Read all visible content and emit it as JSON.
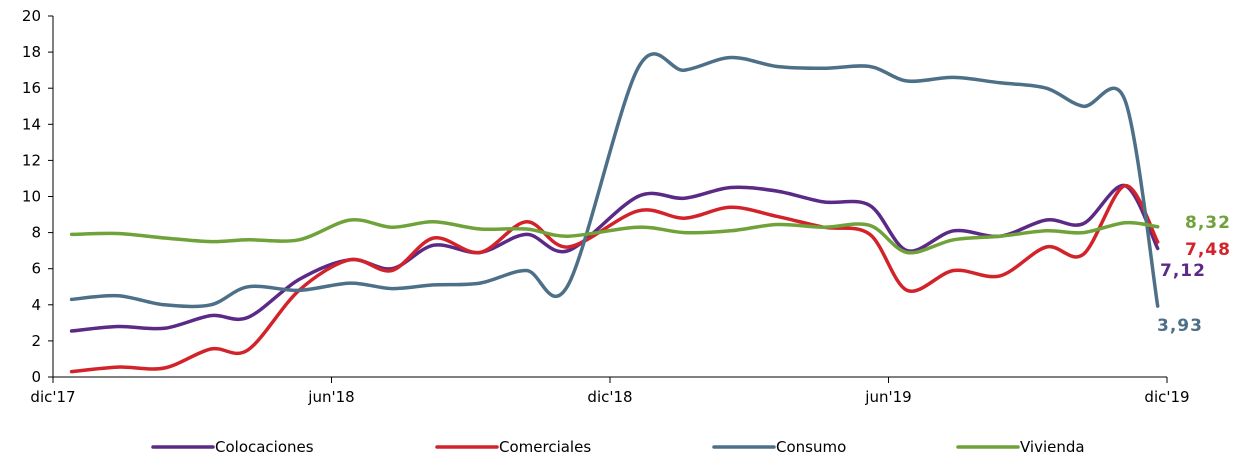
{
  "chart_data": {
    "type": "line",
    "ylim": [
      0,
      20
    ],
    "yticks": [
      "0",
      "2",
      "4",
      "6",
      "8",
      "10",
      "12",
      "14",
      "16",
      "18",
      "20"
    ],
    "xlim": [
      0,
      24
    ],
    "xticks": [
      {
        "x": 0,
        "label": "dic'17"
      },
      {
        "x": 6,
        "label": "jun'18"
      },
      {
        "x": 12,
        "label": "dic'18"
      },
      {
        "x": 18,
        "label": "jun'19"
      },
      {
        "x": 24,
        "label": "dic'19"
      }
    ],
    "series": [
      {
        "name": "Colocaciones",
        "color": "#5b2a86",
        "end_label": "7,12",
        "values": [
          [
            0.4,
            2.55
          ],
          [
            1.4,
            2.8
          ],
          [
            2.4,
            2.7
          ],
          [
            3.4,
            3.4
          ],
          [
            4.2,
            3.3
          ],
          [
            5.3,
            5.4
          ],
          [
            6.4,
            6.5
          ],
          [
            7.3,
            6.0
          ],
          [
            8.2,
            7.3
          ],
          [
            9.2,
            6.9
          ],
          [
            10.2,
            7.9
          ],
          [
            11.1,
            7.0
          ],
          [
            12.6,
            10.0
          ],
          [
            13.6,
            9.9
          ],
          [
            14.6,
            10.5
          ],
          [
            15.6,
            10.3
          ],
          [
            16.6,
            9.7
          ],
          [
            17.6,
            9.5
          ],
          [
            18.4,
            7.0
          ],
          [
            19.4,
            8.1
          ],
          [
            20.4,
            7.8
          ],
          [
            21.4,
            8.7
          ],
          [
            22.2,
            8.5
          ],
          [
            23.1,
            10.6
          ],
          [
            23.8,
            7.12
          ]
        ]
      },
      {
        "name": "Comerciales",
        "color": "#d2232a",
        "end_label": "7,48",
        "values": [
          [
            0.4,
            0.3
          ],
          [
            1.4,
            0.55
          ],
          [
            2.4,
            0.5
          ],
          [
            3.4,
            1.55
          ],
          [
            4.2,
            1.5
          ],
          [
            5.3,
            4.8
          ],
          [
            6.4,
            6.5
          ],
          [
            7.3,
            5.9
          ],
          [
            8.2,
            7.7
          ],
          [
            9.2,
            6.9
          ],
          [
            10.2,
            8.6
          ],
          [
            11.1,
            7.2
          ],
          [
            12.6,
            9.2
          ],
          [
            13.6,
            8.8
          ],
          [
            14.6,
            9.4
          ],
          [
            15.6,
            8.9
          ],
          [
            16.6,
            8.3
          ],
          [
            17.6,
            7.9
          ],
          [
            18.4,
            4.8
          ],
          [
            19.4,
            5.9
          ],
          [
            20.4,
            5.6
          ],
          [
            21.4,
            7.2
          ],
          [
            22.2,
            6.8
          ],
          [
            23.1,
            10.6
          ],
          [
            23.8,
            7.48
          ]
        ]
      },
      {
        "name": "Consumo",
        "color": "#4d7088",
        "end_label": "3,93",
        "values": [
          [
            0.4,
            4.3
          ],
          [
            1.4,
            4.5
          ],
          [
            2.4,
            4.0
          ],
          [
            3.4,
            4.0
          ],
          [
            4.2,
            5.0
          ],
          [
            5.3,
            4.8
          ],
          [
            6.4,
            5.2
          ],
          [
            7.3,
            4.9
          ],
          [
            8.2,
            5.1
          ],
          [
            9.2,
            5.2
          ],
          [
            10.2,
            5.9
          ],
          [
            11.1,
            5.1
          ],
          [
            12.6,
            17.1
          ],
          [
            13.6,
            17.0
          ],
          [
            14.6,
            17.7
          ],
          [
            15.6,
            17.2
          ],
          [
            16.6,
            17.1
          ],
          [
            17.6,
            17.2
          ],
          [
            18.4,
            16.4
          ],
          [
            19.4,
            16.6
          ],
          [
            20.4,
            16.3
          ],
          [
            21.4,
            16.0
          ],
          [
            22.2,
            15.0
          ],
          [
            23.1,
            15.3
          ],
          [
            23.8,
            3.93
          ]
        ]
      },
      {
        "name": "Vivienda",
        "color": "#70a23a",
        "end_label": "8,32",
        "values": [
          [
            0.4,
            7.9
          ],
          [
            1.4,
            7.95
          ],
          [
            2.4,
            7.7
          ],
          [
            3.4,
            7.5
          ],
          [
            4.2,
            7.6
          ],
          [
            5.3,
            7.6
          ],
          [
            6.4,
            8.7
          ],
          [
            7.3,
            8.3
          ],
          [
            8.2,
            8.6
          ],
          [
            9.2,
            8.2
          ],
          [
            10.2,
            8.2
          ],
          [
            11.1,
            7.8
          ],
          [
            12.6,
            8.3
          ],
          [
            13.6,
            8.0
          ],
          [
            14.6,
            8.1
          ],
          [
            15.6,
            8.45
          ],
          [
            16.6,
            8.3
          ],
          [
            17.6,
            8.4
          ],
          [
            18.4,
            6.9
          ],
          [
            19.4,
            7.6
          ],
          [
            20.4,
            7.8
          ],
          [
            21.4,
            8.1
          ],
          [
            22.2,
            8.0
          ],
          [
            23.1,
            8.55
          ],
          [
            23.8,
            8.32
          ]
        ]
      }
    ],
    "legend": {
      "position": "bottom"
    }
  }
}
